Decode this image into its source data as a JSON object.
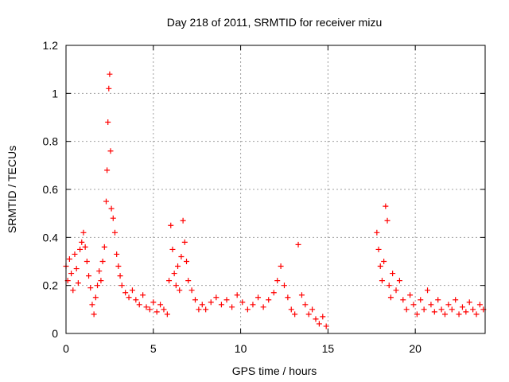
{
  "chart_data": {
    "type": "scatter",
    "title": "Day 218 of 2011, SRMTID for receiver mizu",
    "xlabel": "GPS time / hours",
    "ylabel": "SRMTID / TECUs",
    "xlim": [
      0,
      24
    ],
    "ylim": [
      0,
      1.2
    ],
    "x_ticks": [
      0,
      5,
      10,
      15,
      20
    ],
    "x_tick_labels": [
      "0",
      "5",
      "10",
      "15",
      "20"
    ],
    "y_ticks": [
      0,
      0.2,
      0.4,
      0.6,
      0.8,
      1,
      1.2
    ],
    "y_tick_labels": [
      "0",
      "0.2",
      "0.4",
      "0.6",
      "0.8",
      "1",
      "1.2"
    ],
    "grid": true,
    "marker": "+",
    "series_color": "#ff0000",
    "series": [
      {
        "name": "SRMTID",
        "x": [
          0.0,
          0.1,
          0.2,
          0.3,
          0.4,
          0.5,
          0.6,
          0.7,
          0.8,
          0.9,
          1.0,
          1.1,
          1.2,
          1.3,
          1.4,
          1.5,
          1.6,
          1.7,
          1.8,
          1.9,
          2.0,
          2.1,
          2.2,
          2.3,
          2.35,
          2.4,
          2.45,
          2.5,
          2.55,
          2.6,
          2.7,
          2.8,
          2.9,
          3.0,
          3.1,
          3.2,
          3.4,
          3.6,
          3.8,
          4.0,
          4.2,
          4.4,
          4.6,
          4.8,
          5.0,
          5.2,
          5.4,
          5.6,
          5.8,
          5.9,
          6.0,
          6.1,
          6.2,
          6.3,
          6.4,
          6.5,
          6.6,
          6.7,
          6.8,
          6.9,
          7.0,
          7.2,
          7.4,
          7.6,
          7.8,
          8.0,
          8.3,
          8.6,
          8.9,
          9.2,
          9.5,
          9.8,
          10.1,
          10.4,
          10.7,
          11.0,
          11.3,
          11.6,
          11.9,
          12.1,
          12.3,
          12.5,
          12.7,
          12.9,
          13.1,
          13.3,
          13.5,
          13.7,
          13.9,
          14.1,
          14.3,
          14.5,
          14.7,
          14.9,
          17.8,
          17.9,
          18.0,
          18.1,
          18.2,
          18.3,
          18.4,
          18.5,
          18.6,
          18.7,
          18.9,
          19.1,
          19.3,
          19.5,
          19.7,
          19.9,
          20.1,
          20.3,
          20.5,
          20.7,
          20.9,
          21.1,
          21.3,
          21.5,
          21.7,
          21.9,
          22.1,
          22.3,
          22.5,
          22.7,
          22.9,
          23.1,
          23.3,
          23.5,
          23.7,
          23.9
        ],
        "y": [
          0.28,
          0.22,
          0.31,
          0.25,
          0.18,
          0.33,
          0.27,
          0.21,
          0.35,
          0.38,
          0.42,
          0.36,
          0.3,
          0.24,
          0.19,
          0.12,
          0.08,
          0.15,
          0.2,
          0.26,
          0.22,
          0.3,
          0.36,
          0.55,
          0.68,
          0.88,
          1.02,
          1.08,
          0.76,
          0.52,
          0.48,
          0.42,
          0.33,
          0.28,
          0.24,
          0.2,
          0.17,
          0.15,
          0.18,
          0.14,
          0.12,
          0.16,
          0.11,
          0.1,
          0.13,
          0.09,
          0.12,
          0.1,
          0.08,
          0.22,
          0.45,
          0.35,
          0.25,
          0.2,
          0.28,
          0.18,
          0.32,
          0.47,
          0.38,
          0.3,
          0.22,
          0.18,
          0.14,
          0.1,
          0.12,
          0.1,
          0.13,
          0.15,
          0.12,
          0.14,
          0.11,
          0.16,
          0.13,
          0.1,
          0.12,
          0.15,
          0.11,
          0.14,
          0.17,
          0.22,
          0.28,
          0.2,
          0.15,
          0.1,
          0.08,
          0.37,
          0.16,
          0.12,
          0.08,
          0.1,
          0.06,
          0.04,
          0.07,
          0.03,
          0.42,
          0.35,
          0.28,
          0.22,
          0.3,
          0.53,
          0.47,
          0.2,
          0.15,
          0.25,
          0.18,
          0.22,
          0.14,
          0.1,
          0.16,
          0.12,
          0.08,
          0.14,
          0.1,
          0.18,
          0.12,
          0.09,
          0.14,
          0.1,
          0.08,
          0.12,
          0.1,
          0.14,
          0.08,
          0.11,
          0.09,
          0.13,
          0.1,
          0.08,
          0.12,
          0.1
        ]
      }
    ]
  }
}
